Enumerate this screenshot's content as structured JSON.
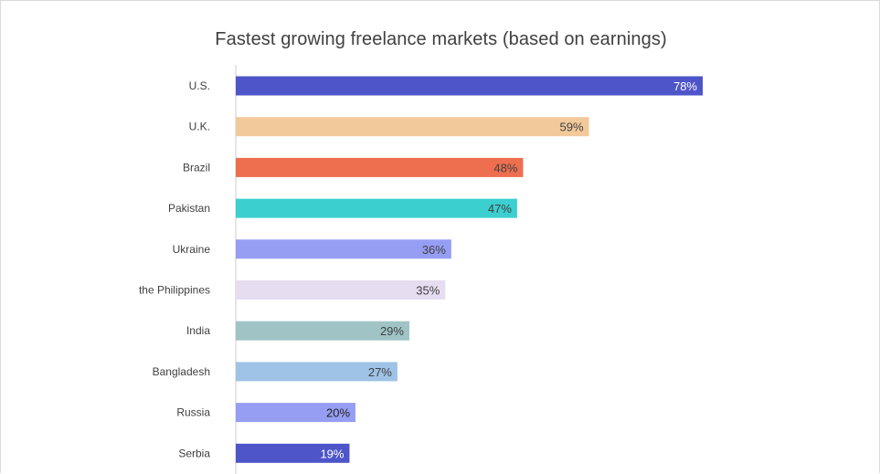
{
  "chart_data": {
    "type": "bar",
    "orientation": "horizontal",
    "title": "Fastest growing freelance markets (based on earnings)",
    "xlabel": "",
    "ylabel": "",
    "xlim": [
      0,
      78
    ],
    "grid": false,
    "legend": "none",
    "categories": [
      "U.S.",
      "U.K.",
      "Brazil",
      "Pakistan",
      "Ukraine",
      "the Philippines",
      "India",
      "Bangladesh",
      "Russia",
      "Serbia"
    ],
    "values": [
      78,
      59,
      48,
      47,
      36,
      35,
      29,
      27,
      20,
      19
    ],
    "data_labels": [
      "78%",
      "59%",
      "48%",
      "47%",
      "36%",
      "35%",
      "29%",
      "27%",
      "20%",
      "19%"
    ],
    "colors": [
      "#4e55c9",
      "#f2c99b",
      "#ee6f50",
      "#3ccfcf",
      "#969ef4",
      "#e6ddf0",
      "#a0c4c6",
      "#9fc3e6",
      "#969ef4",
      "#4e55c9"
    ],
    "label_colors": [
      "#ffffff",
      "#404040",
      "#404040",
      "#404040",
      "#404040",
      "#404040",
      "#404040",
      "#404040",
      "#222222",
      "#ffffff"
    ]
  }
}
